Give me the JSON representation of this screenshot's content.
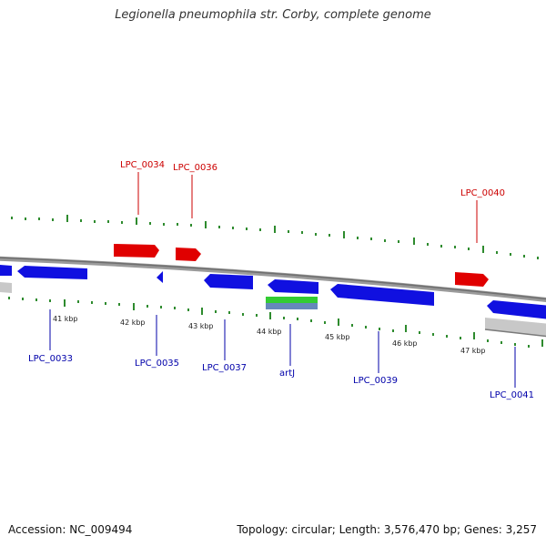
{
  "title": "Legionella pneumophila str. Corby, complete genome",
  "footer": {
    "accession": "Accession: NC_009494",
    "topology": "Topology: circular; Length: 3,576,470 bp; Genes: 3,257"
  },
  "colors": {
    "backbone": "#808080",
    "tick": "#2e8b2e",
    "forward_gene": "#e00000",
    "reverse_gene": "#1010e0",
    "label_forward": "#cc0000",
    "label_reverse": "#0000aa",
    "rna_green": "#33cc33",
    "rna_blue": "#6688bb",
    "pseudo_grey": "#c8c8c8"
  },
  "kbp_labels": [
    "41 kbp",
    "42 kbp",
    "43 kbp",
    "44 kbp",
    "45 kbp",
    "46 kbp",
    "47 kbp"
  ],
  "gene_labels_forward": [
    "LPC_0034",
    "LPC_0036",
    "LPC_0040"
  ],
  "gene_labels_reverse": [
    "LPC_0033",
    "LPC_0035",
    "LPC_0037",
    "artJ",
    "LPC_0039",
    "LPC_0041"
  ]
}
